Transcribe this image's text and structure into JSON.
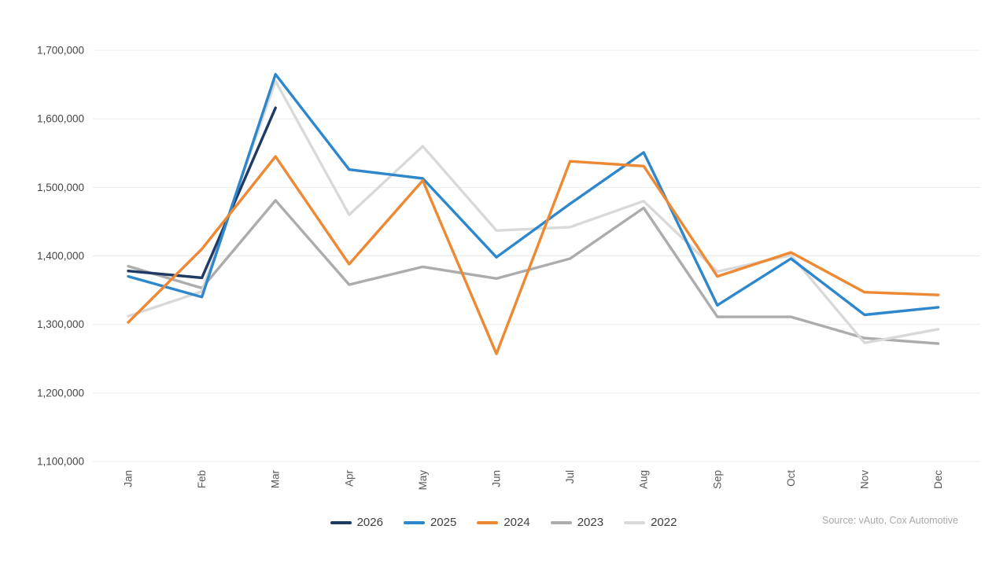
{
  "chart_data": {
    "type": "line",
    "title": "",
    "categories": [
      "Jan",
      "Feb",
      "Mar",
      "Apr",
      "May",
      "Jun",
      "Jul",
      "Aug",
      "Sep",
      "Oct",
      "Nov",
      "Dec"
    ],
    "y_axis": {
      "min": 1100000,
      "max": 1700000,
      "step": 100000,
      "tick_labels": [
        "1,100,000",
        "1,200,000",
        "1,300,000",
        "1,400,000",
        "1,500,000",
        "1,600,000",
        "1,700,000"
      ]
    },
    "grid": true,
    "legend_position": "bottom",
    "series": [
      {
        "name": "2026",
        "color": "#1f3a63",
        "values": [
          1378000,
          1368000,
          1616000,
          null,
          null,
          null,
          null,
          null,
          null,
          null,
          null,
          null
        ]
      },
      {
        "name": "2025",
        "color": "#2e86cb",
        "values": [
          1370000,
          1340000,
          1665000,
          1526000,
          1513000,
          1398000,
          1476000,
          1551000,
          1328000,
          1396000,
          1314000,
          1325000
        ]
      },
      {
        "name": "2024",
        "color": "#ed8833",
        "values": [
          1303000,
          1410000,
          1545000,
          1388000,
          1510000,
          1257000,
          1538000,
          1531000,
          1370000,
          1405000,
          1347000,
          1343000
        ]
      },
      {
        "name": "2023",
        "color": "#acacac",
        "values": [
          1385000,
          1353000,
          1481000,
          1358000,
          1384000,
          1367000,
          1396000,
          1470000,
          1311000,
          1311000,
          1280000,
          1272000
        ]
      },
      {
        "name": "2022",
        "color": "#d9d9d9",
        "values": [
          1312000,
          1348000,
          1655000,
          1460000,
          1560000,
          1437000,
          1442000,
          1480000,
          1377000,
          1401000,
          1273000,
          1293000
        ]
      }
    ]
  },
  "source_note": "Source: vAuto, Cox Automotive"
}
